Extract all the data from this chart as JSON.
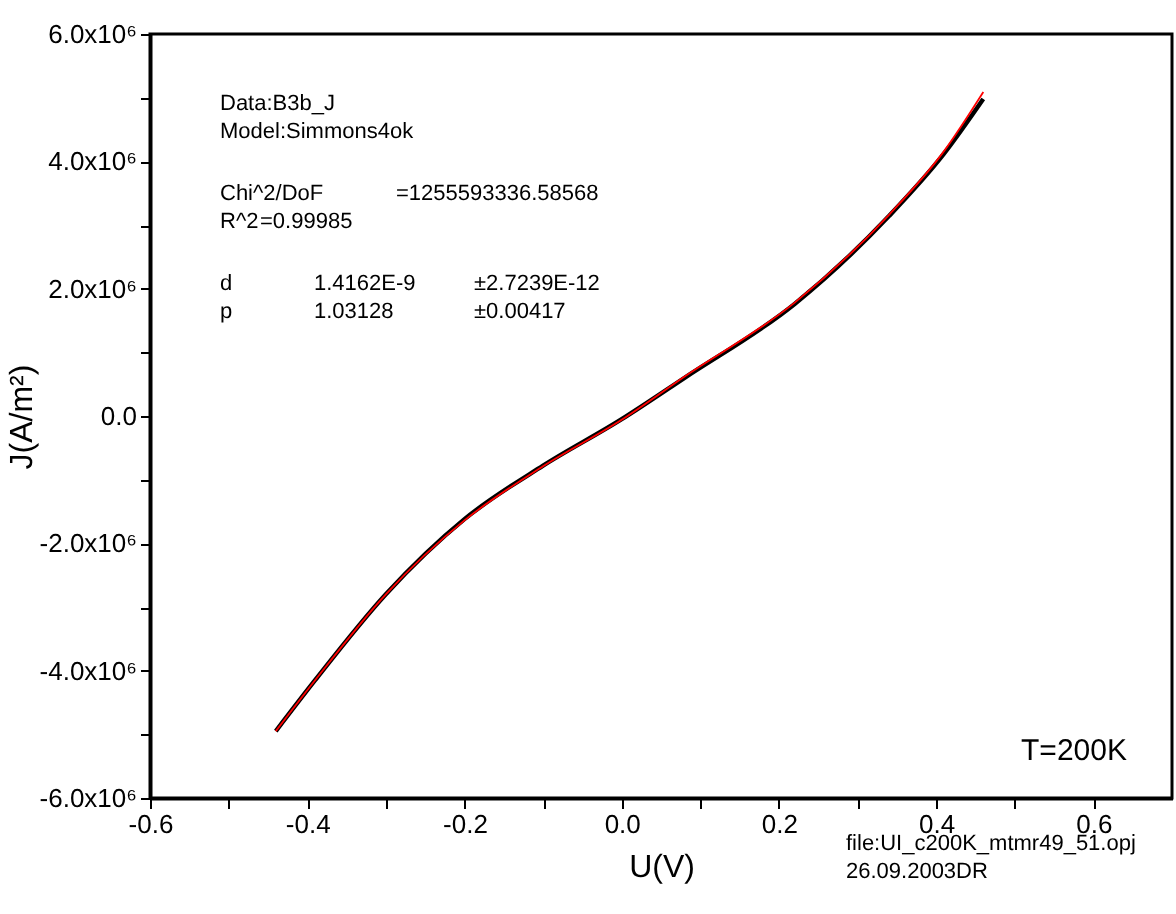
{
  "chart_data": {
    "type": "line",
    "xlabel": "U(V)",
    "ylabel": "J(A/m²)",
    "x": [
      -0.44,
      -0.39,
      -0.3,
      -0.2,
      -0.1,
      0.0,
      0.08,
      0.22,
      0.34,
      0.41,
      0.46
    ],
    "series": [
      {
        "color": "#000000",
        "values": [
          -4950000,
          -4150000,
          -2800000,
          -1620000,
          -780000,
          -50000,
          600000,
          1760000,
          3140000,
          4120000,
          4980000
        ]
      },
      {
        "color": "#ff0000",
        "values": [
          -4950000,
          -4150000,
          -2800000,
          -1640000,
          -790000,
          -60000,
          620000,
          1780000,
          3160000,
          4160000,
          5090000
        ]
      }
    ],
    "xlim": [
      -0.6,
      0.7
    ],
    "xticks": [
      -0.6,
      {
        "value": -0.5,
        "label": null
      },
      -0.4,
      {
        "value": -0.3,
        "label": null
      },
      -0.2,
      {
        "value": -0.1,
        "label": null
      },
      {
        "value": 0,
        "label": "0.0"
      },
      {
        "value": 0.1,
        "label": null
      },
      0.2,
      {
        "value": 0.3,
        "label": null
      },
      0.4,
      {
        "value": 0.5,
        "label": null
      },
      0.6
    ],
    "ylim": [
      -6000000,
      6000000
    ],
    "yticks": [
      {
        "value": -6000000,
        "label": "-6.0x10⁶"
      },
      {
        "value": -5000000,
        "label": null
      },
      {
        "value": -4000000,
        "label": "-4.0x10⁶"
      },
      {
        "value": -3000000,
        "label": null
      },
      {
        "value": -2000000,
        "label": "-2.0x10⁶"
      },
      {
        "value": -1000000,
        "label": null
      },
      {
        "value": 0,
        "label": "0.0"
      },
      {
        "value": 1000000,
        "label": null
      },
      {
        "value": 2000000,
        "label": "2.0x10⁶"
      },
      {
        "value": 3000000,
        "label": null
      },
      {
        "value": 4000000,
        "label": "4.0x10⁶"
      },
      {
        "value": 5000000,
        "label": null
      },
      {
        "value": 6000000,
        "label": "6.0x10⁶"
      }
    ],
    "grid": false,
    "marker": "none",
    "line_style": "solid",
    "annotations": [
      "Data:B3b_J",
      "Model:Simmons4ok",
      "Chi^2/DoF",
      "=1255593336.58568",
      "R^2",
      "=0.99985",
      "d",
      "1.4162E-9",
      "±2.7239E-12",
      "p",
      "1.03128",
      "±0.00417",
      "T=200K",
      "file:UI_c200K_mtmr49_51.opj",
      "26.09.2003DR"
    ]
  }
}
